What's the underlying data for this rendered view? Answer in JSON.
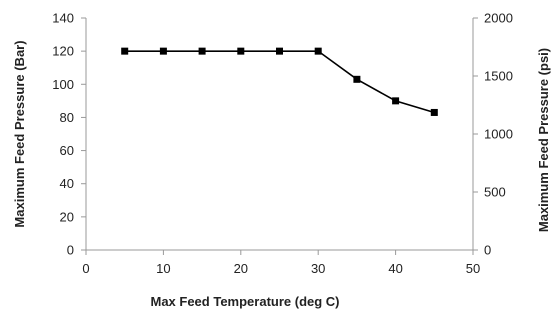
{
  "chart_data": {
    "type": "line",
    "title": "",
    "xlabel": "Max Feed Temperature (deg C)",
    "ylabel": "Maximum Feed Pressure (Bar)",
    "y2label": "Maximum Feed Pressure (psi)",
    "xlim": [
      0,
      50
    ],
    "ylim": [
      0,
      140
    ],
    "y2lim": [
      0,
      2000
    ],
    "xticks": [
      "0",
      "10",
      "20",
      "30",
      "40",
      "50"
    ],
    "yticks": [
      "0",
      "20",
      "40",
      "60",
      "80",
      "100",
      "120",
      "140"
    ],
    "y2ticks": [
      "0",
      "500",
      "1000",
      "1500",
      "2000"
    ],
    "grid": false,
    "legend": "none",
    "series": [
      {
        "x": [
          5,
          10,
          15,
          20,
          25,
          30,
          35,
          40,
          45
        ],
        "values": [
          120,
          120,
          120,
          120,
          120,
          120,
          103,
          90,
          83
        ]
      }
    ],
    "colors": {
      "line": "#000000",
      "marker": "#000000",
      "axis": "#999999",
      "text": "#222222"
    }
  }
}
